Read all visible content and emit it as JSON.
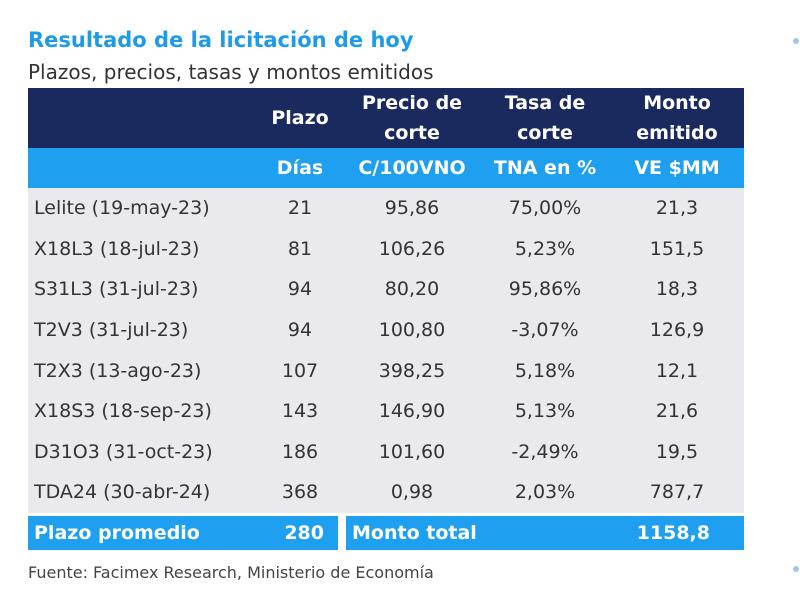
{
  "title": "Resultado de la licitación de hoy",
  "subtitle": "Plazos, precios, tasas y montos emitidos",
  "headers": {
    "plazo": "Plazo",
    "precio": "Precio de corte",
    "tasa": "Tasa de corte",
    "monto": "Monto emitido"
  },
  "units": {
    "plazo": "Días",
    "precio": "C/100VNO",
    "tasa": "TNA en %",
    "monto": "VE $MM"
  },
  "rows": [
    {
      "name": "Lelite (19-may-23)",
      "plazo": "21",
      "precio": "95,86",
      "tasa": "75,00%",
      "monto": "21,3"
    },
    {
      "name": "X18L3 (18-jul-23)",
      "plazo": "81",
      "precio": "106,26",
      "tasa": "5,23%",
      "monto": "151,5"
    },
    {
      "name": "S31L3 (31-jul-23)",
      "plazo": "94",
      "precio": "80,20",
      "tasa": "95,86%",
      "monto": "18,3"
    },
    {
      "name": "T2V3 (31-jul-23)",
      "plazo": "94",
      "precio": "100,80",
      "tasa": "-3,07%",
      "monto": "126,9"
    },
    {
      "name": "T2X3 (13-ago-23)",
      "plazo": "107",
      "precio": "398,25",
      "tasa": "5,18%",
      "monto": "12,1"
    },
    {
      "name": "X18S3 (18-sep-23)",
      "plazo": "143",
      "precio": "146,90",
      "tasa": "5,13%",
      "monto": "21,6"
    },
    {
      "name": "D31O3 (31-oct-23)",
      "plazo": "186",
      "precio": "101,60",
      "tasa": "-2,49%",
      "monto": "19,5"
    },
    {
      "name": "TDA24 (30-abr-24)",
      "plazo": "368",
      "precio": "0,98",
      "tasa": "2,03%",
      "monto": "787,7"
    }
  ],
  "footer": {
    "plazo_label": "Plazo promedio",
    "plazo_value": "280",
    "monto_label": "Monto total",
    "monto_value": "1158,8"
  },
  "source": "Fuente: Facimex Research, Ministerio de Economía"
}
